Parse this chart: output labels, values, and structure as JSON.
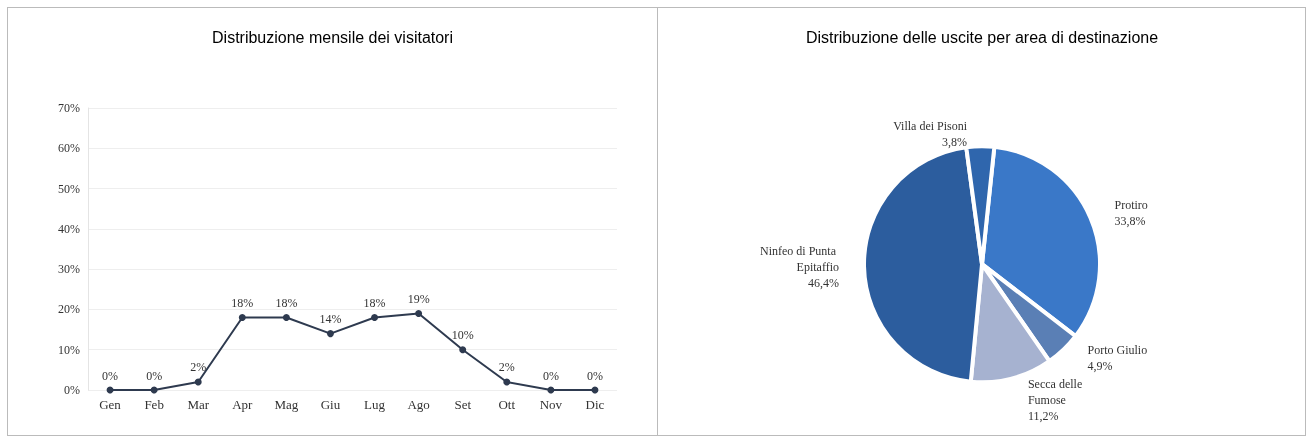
{
  "chart_data": [
    {
      "type": "line",
      "title": "Distribuzione mensile dei visitatori",
      "categories": [
        "Gen",
        "Feb",
        "Mar",
        "Apr",
        "Mag",
        "Giu",
        "Lug",
        "Ago",
        "Set",
        "Ott",
        "Nov",
        "Dic"
      ],
      "series": [
        {
          "color": "#2e3a4f",
          "values": [
            0,
            0,
            2,
            18,
            18,
            14,
            18,
            19,
            10,
            2,
            0,
            0
          ],
          "value_labels": [
            "0%",
            "0%",
            "2%",
            "18%",
            "18%",
            "14%",
            "18%",
            "19%",
            "10%",
            "2%",
            "0%",
            "0%"
          ]
        }
      ],
      "ylim": [
        0,
        70
      ],
      "yticks": [
        {
          "value": 0,
          "label": "0%"
        },
        {
          "value": 10,
          "label": "10%"
        },
        {
          "value": 20,
          "label": "20%"
        },
        {
          "value": 30,
          "label": "30%"
        },
        {
          "value": 40,
          "label": "40%"
        },
        {
          "value": 50,
          "label": "50%"
        },
        {
          "value": 60,
          "label": "60%"
        },
        {
          "value": 70,
          "label": "70%"
        }
      ],
      "grid": "y",
      "marker": "circle",
      "line_style": "solid",
      "legend": false
    },
    {
      "type": "pie",
      "title": "Distribuzione delle uscite per area di destinazione",
      "categories": [
        "Protiro",
        "Porto Giulio",
        "Secca delle Fumose",
        "Ninfeo di Punta Epitaffio",
        "Villa dei Pisoni"
      ],
      "values": [
        33.8,
        4.9,
        11.2,
        46.4,
        3.8
      ],
      "value_labels": [
        "33,8%",
        "4,9%",
        "11,2%",
        "46,4%",
        "3,8%"
      ],
      "colors": [
        "#3a78c8",
        "#5a7fb5",
        "#a6b2d0",
        "#2c5d9e",
        "#2f66ad"
      ],
      "legend": false
    }
  ]
}
